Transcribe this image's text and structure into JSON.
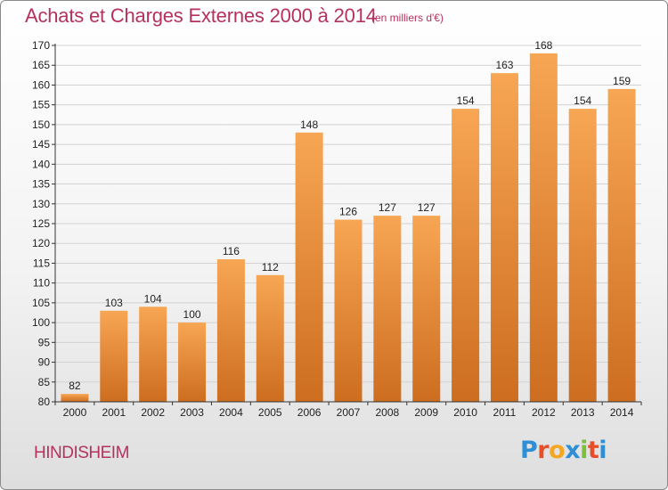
{
  "header": {
    "title": "Achats et Charges Externes 2000 à 2014",
    "unit": "(en milliers d'€)"
  },
  "location": "HINDISHEIM",
  "logo": {
    "letters": [
      {
        "char": "P",
        "color": "#2f8fd6"
      },
      {
        "char": "r",
        "color": "#e64f2a"
      },
      {
        "char": "o",
        "color": "#f5a623"
      },
      {
        "char": "x",
        "color": "#2f8fd6"
      },
      {
        "char": "i",
        "color": "#7cbf3a"
      },
      {
        "char": "t",
        "color": "#e64f2a"
      },
      {
        "char": "i",
        "color": "#2f8fd6"
      }
    ]
  },
  "colors": {
    "bar_light": "#f7a654",
    "bar_dark": "#cd6d1f",
    "grid": "#d2d2d2",
    "axis": "#333333",
    "text": "#222222"
  },
  "chart_data": {
    "type": "bar",
    "categories": [
      "2000",
      "2001",
      "2002",
      "2003",
      "2004",
      "2005",
      "2006",
      "2007",
      "2008",
      "2009",
      "2010",
      "2011",
      "2012",
      "2013",
      "2014"
    ],
    "values": [
      82,
      103,
      104,
      100,
      116,
      112,
      148,
      126,
      127,
      127,
      154,
      163,
      168,
      154,
      159
    ],
    "ylim": [
      80,
      170
    ],
    "yticks": [
      80,
      85,
      90,
      95,
      100,
      105,
      110,
      115,
      120,
      125,
      130,
      135,
      140,
      145,
      150,
      155,
      160,
      165,
      170
    ],
    "grid": true,
    "data_labels": true
  }
}
